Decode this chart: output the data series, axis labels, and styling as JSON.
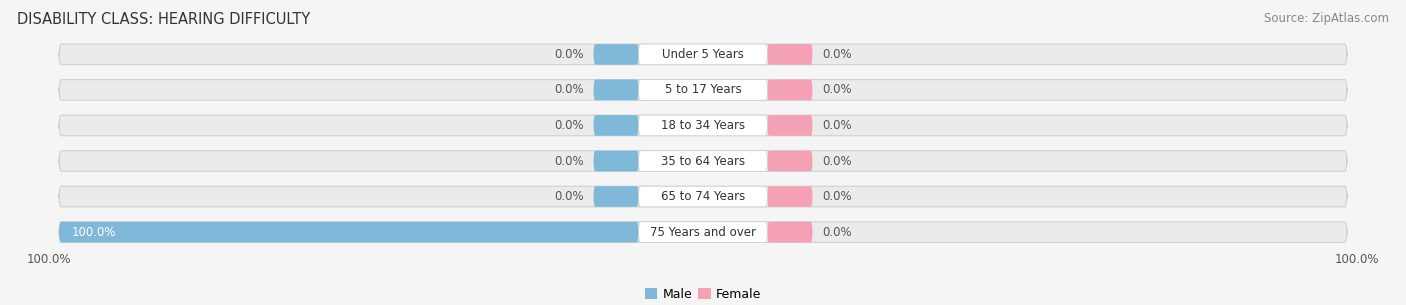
{
  "title": "DISABILITY CLASS: HEARING DIFFICULTY",
  "source": "Source: ZipAtlas.com",
  "categories": [
    "Under 5 Years",
    "5 to 17 Years",
    "18 to 34 Years",
    "35 to 64 Years",
    "65 to 74 Years",
    "75 Years and over"
  ],
  "male_values": [
    0.0,
    0.0,
    0.0,
    0.0,
    0.0,
    100.0
  ],
  "female_values": [
    0.0,
    0.0,
    0.0,
    0.0,
    0.0,
    0.0
  ],
  "male_color": "#7fb8d8",
  "female_color": "#f4a0b5",
  "bar_bg_color": "#e8e8e8",
  "bar_bg_edge_color": "#d0d0d0",
  "title_fontsize": 10.5,
  "source_fontsize": 8.5,
  "value_fontsize": 8.5,
  "legend_fontsize": 9,
  "category_fontsize": 8.5,
  "background_color": "#f5f5f5",
  "bar_bg_color2": "#ebebeb",
  "pill_color": "#ffffff",
  "min_bar_width": 7.0,
  "xlim_abs": 100
}
